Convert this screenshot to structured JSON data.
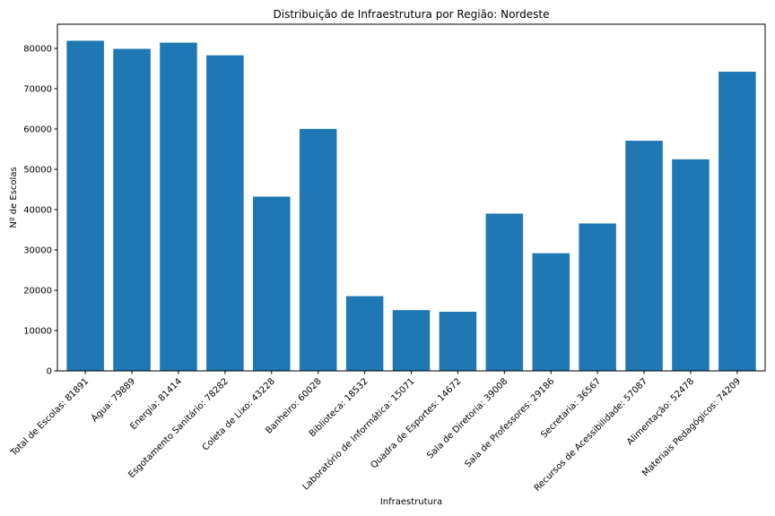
{
  "chart_data": {
    "type": "bar",
    "title": "Distribuição de Infraestrutura por Região: Nordeste",
    "xlabel": "Infraestrutura",
    "ylabel": "Nº de Escolas",
    "categories": [
      "Total de Escolas: 81891",
      "Água: 79889",
      "Energia: 81414",
      "Esgotamento Sanitário: 78282",
      "Coleta de Lixo: 43228",
      "Banheiro: 60028",
      "Biblioteca: 18532",
      "Laboratório de Informática: 15071",
      "Quadra de Esportes: 14672",
      "Sala de Diretoria: 39008",
      "Sala de Professores: 29186",
      "Secretaria: 36567",
      "Recursos de Acessibilidade: 57087",
      "Alimentação: 52478",
      "Materiais Pedagógicos: 74209"
    ],
    "values": [
      81891,
      79889,
      81414,
      78282,
      43228,
      60028,
      18532,
      15071,
      14672,
      39008,
      29186,
      36567,
      57087,
      52478,
      74209
    ],
    "ylim": [
      0,
      86000
    ],
    "yticks": [
      0,
      10000,
      20000,
      30000,
      40000,
      50000,
      60000,
      70000,
      80000
    ],
    "grid": false,
    "bar_color": "#1f77b4"
  }
}
